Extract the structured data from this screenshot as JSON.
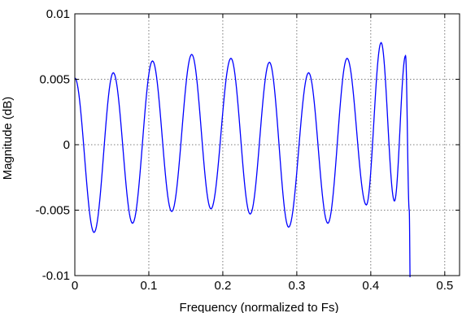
{
  "chart_data": {
    "type": "line",
    "xlabel": "Frequency (normalized to Fs)",
    "ylabel": "Magnitude (dB)",
    "xlim": [
      0,
      0.52
    ],
    "ylim": [
      -0.01,
      0.01
    ],
    "x_ticks": [
      0,
      0.1,
      0.2,
      0.3,
      0.4,
      0.5
    ],
    "x_tick_labels": [
      "0",
      "0.1",
      "0.2",
      "0.3",
      "0.4",
      "0.5"
    ],
    "y_ticks": [
      0.01,
      0.005,
      0,
      -0.005,
      -0.01
    ],
    "y_tick_labels": [
      "0.01",
      "0.005",
      "0",
      "-0.005",
      "-0.01"
    ],
    "grid": true,
    "series": [
      {
        "color": "#0000ff",
        "x": [
          0,
          0.026,
          0.052,
          0.078,
          0.105,
          0.131,
          0.158,
          0.184,
          0.211,
          0.237,
          0.263,
          0.289,
          0.316,
          0.342,
          0.368,
          0.394,
          0.414,
          0.432,
          0.447,
          0.452,
          0.4535
        ],
        "y": [
          0.0051,
          -0.0067,
          0.0055,
          -0.006,
          0.0064,
          -0.0051,
          0.0069,
          -0.0049,
          0.0066,
          -0.0053,
          0.0063,
          -0.0063,
          0.0055,
          -0.006,
          0.0066,
          -0.0046,
          0.0078,
          -0.0043,
          0.0068,
          -0.005,
          -0.0115
        ]
      }
    ]
  }
}
